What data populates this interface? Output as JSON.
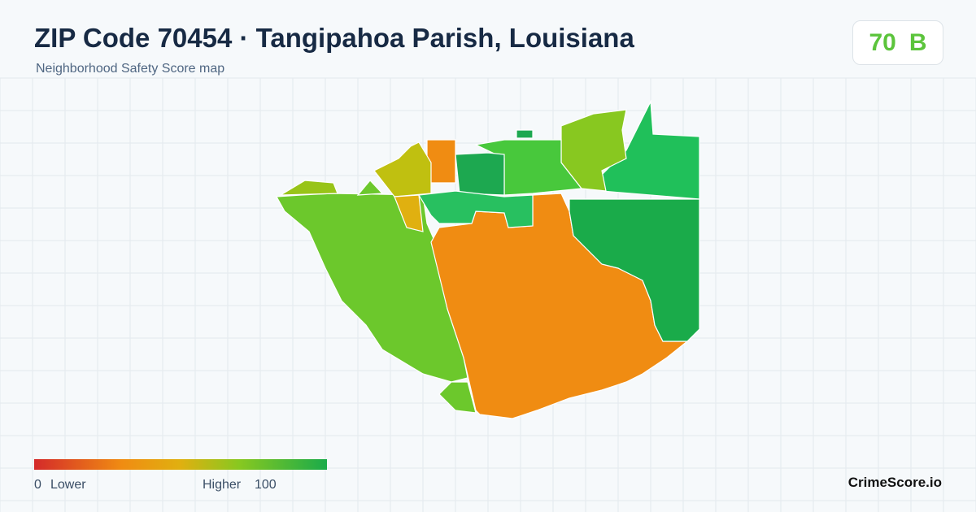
{
  "header": {
    "title": "ZIP Code 70454 · Tangipahoa Parish, Louisiana",
    "subtitle": "Neighborhood Safety Score map"
  },
  "score": {
    "value": 70,
    "grade": "B"
  },
  "legend": {
    "min": 0,
    "min_label": "Lower",
    "max_label": "Higher",
    "max": 100
  },
  "brand": "CrimeScore.io"
}
